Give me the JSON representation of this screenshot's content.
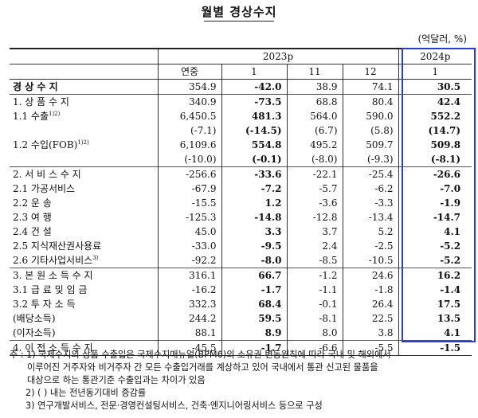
{
  "title": "월별 경상수지",
  "unit": "(억달러, %)",
  "header": {
    "year2023": "2023p",
    "year2024": "2024p",
    "annual": "연중",
    "m1": "1",
    "m11": "11",
    "m12": "12",
    "m2024_1": "1"
  },
  "rows": [
    {
      "label": "경 상 수 지",
      "sup": "",
      "values": [
        "354.9",
        "-42.0",
        "38.9",
        "74.1",
        "30.5"
      ],
      "bold_label": true
    },
    {
      "label": "1. 상 품 수 지",
      "sup": "",
      "values": [
        "340.9",
        "-73.5",
        "68.8",
        "80.4",
        "42.4"
      ]
    },
    {
      "label": "1.1  수출",
      "sup": "1)2)",
      "values": [
        "6,450.5",
        "481.3",
        "564.0",
        "590.0",
        "552.2"
      ]
    },
    {
      "label": "",
      "sup": "",
      "values": [
        "(-7.1)",
        "(-14.5)",
        "(6.7)",
        "(5.8)",
        "(14.7)"
      ]
    },
    {
      "label": "1.2  수입(FOB)",
      "sup": "1)2)",
      "values": [
        "6,109.6",
        "554.8",
        "495.2",
        "509.7",
        "509.8"
      ]
    },
    {
      "label": "",
      "sup": "",
      "values": [
        "(-10.0)",
        "(-0.1)",
        "(-8.0)",
        "(-9.3)",
        "(-8.1)"
      ]
    },
    {
      "label": "2. 서 비 스 수 지",
      "sup": "",
      "values": [
        "-256.6",
        "-33.6",
        "-22.1",
        "-25.4",
        "-26.6"
      ]
    },
    {
      "label": "2.1  가공서비스",
      "sup": "",
      "values": [
        "-67.9",
        "-7.2",
        "-5.7",
        "-6.2",
        "-7.0"
      ]
    },
    {
      "label": "2.2  운          송",
      "sup": "",
      "values": [
        "-15.5",
        "1.2",
        "-3.6",
        "-3.3",
        "-1.9"
      ]
    },
    {
      "label": "2.3  여          행",
      "sup": "",
      "values": [
        "-125.3",
        "-14.8",
        "-12.8",
        "-13.4",
        "-14.7"
      ]
    },
    {
      "label": "2.4  건          설",
      "sup": "",
      "values": [
        "45.0",
        "3.3",
        "3.7",
        "5.2",
        "4.1"
      ]
    },
    {
      "label": "2.5  지식재산권사용료",
      "sup": "",
      "values": [
        "-33.0",
        "-9.5",
        "2.4",
        "-2.5",
        "-5.2"
      ]
    },
    {
      "label": "2.6  기타사업서비스",
      "sup": "3)",
      "values": [
        "-92.2",
        "-8.0",
        "-8.5",
        "-10.5",
        "-5.2"
      ]
    },
    {
      "label": "3. 본 원 소 득 수 지",
      "sup": "",
      "values": [
        "316.1",
        "66.7",
        "-1.2",
        "24.6",
        "16.2"
      ]
    },
    {
      "label": "3.1  급 료 및 임 금",
      "sup": "",
      "values": [
        "-16.2",
        "-1.7",
        "-1.1",
        "-1.8",
        "-1.4"
      ]
    },
    {
      "label": "3.2  투  자  소  득",
      "sup": "",
      "values": [
        "332.3",
        "68.4",
        "-0.1",
        "26.4",
        "17.5"
      ]
    },
    {
      "label": "(배당소득)",
      "sup": "",
      "values": [
        "244.2",
        "59.5",
        "-8.1",
        "22.5",
        "13.5"
      ]
    },
    {
      "label": "(이자소득)",
      "sup": "",
      "values": [
        "88.1",
        "8.9",
        "8.0",
        "3.8",
        "4.1"
      ]
    },
    {
      "label": "4. 이 전 소 득 수 지",
      "sup": "",
      "values": [
        "-45.5",
        "-1.7",
        "-6.6",
        "-5.5",
        "-1.5"
      ]
    }
  ],
  "notes": {
    "n1_line1": "주 : 1)  국제수지의 상품 수출입은 국제수지매뉴얼(BPM6)의 소유권 변동원칙에 따라 국내 및 해외에서",
    "n1_line2": "이루어진 거주자와 비거주자 간 모든 수출입거래를 계상하고 있어 국내에서 통관 신고된 물품을",
    "n1_line3": "대상으로 하는 통관기준 수출입과는 차이가 있음",
    "n2": "2)  (  ) 내는 전년동기대비 증감률",
    "n3": "3)  연구개발서비스, 전문·경영컨설팅서비스, 건축·엔지니어링서비스 등으로 구성"
  }
}
